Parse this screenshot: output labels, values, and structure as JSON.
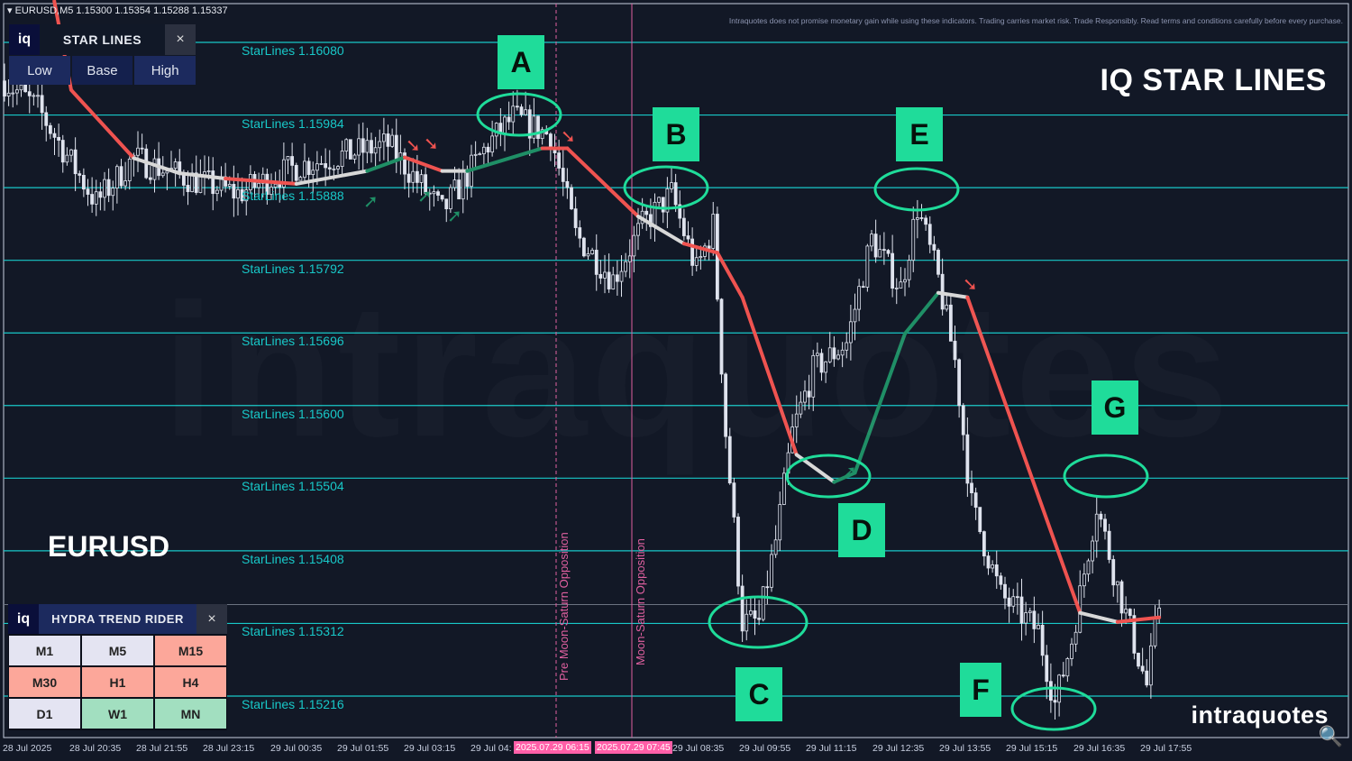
{
  "header": {
    "symbol_info": "EURUSD,M5  1.15300 1.15354 1.15288 1.15337"
  },
  "disclaimer": "Intraquotes does not promise monetary gain while using these indicators. Trading carries market risk. Trade Responsibly. Read terms and conditions carefully before every purchase.",
  "brand_title": "IQ STAR LINES",
  "symbol_label": "EURUSD",
  "logo": "intraquotes",
  "watermark": "intraquotes",
  "star_lines_panel": {
    "logo": "iq",
    "title": "STAR LINES",
    "close": "×",
    "buttons": [
      "Low",
      "Base",
      "High"
    ],
    "selected": "Base"
  },
  "hydra_panel": {
    "logo": "iq",
    "title": "HYDRA TREND RIDER",
    "close": "×",
    "cells": [
      {
        "tf": "M1",
        "state": "neutral"
      },
      {
        "tf": "M5",
        "state": "neutral"
      },
      {
        "tf": "M15",
        "state": "bearish"
      },
      {
        "tf": "M30",
        "state": "bearish"
      },
      {
        "tf": "H1",
        "state": "bearish"
      },
      {
        "tf": "H4",
        "state": "bearish"
      },
      {
        "tf": "D1",
        "state": "neutral"
      },
      {
        "tf": "W1",
        "state": "bullish"
      },
      {
        "tf": "MN",
        "state": "bullish"
      }
    ]
  },
  "colors": {
    "neutral": "#e4e4f2",
    "bearish": "#fca79a",
    "bullish": "#a2dfc0",
    "level_line": "#18c8c8",
    "trend_red": "#ef5350",
    "trend_green": "#1f8f66",
    "trend_white": "#d8d8d8",
    "annotation": "#1fdc9a",
    "event_line": "#e060a0"
  },
  "annotations": [
    "A",
    "B",
    "C",
    "D",
    "E",
    "F",
    "G"
  ],
  "events": [
    {
      "label": "Pre Moon-Saturn Opposition",
      "time_label": "2025.07.29 06:15",
      "style": "dashed"
    },
    {
      "label": "Moon-Saturn Opposition",
      "time_label": "2025.07.29 07:45",
      "style": "solid"
    }
  ],
  "chart_data": {
    "type": "candlestick",
    "symbol": "EURUSD",
    "timeframe": "M5",
    "ohlc_last": {
      "open": 1.153,
      "high": 1.15354,
      "low": 1.15288,
      "close": 1.15337
    },
    "ylim": [
      1.1518,
      1.1613
    ],
    "grid": false,
    "x_tick_labels": [
      "28 Jul 2025",
      "28 Jul 20:35",
      "28 Jul 21:55",
      "28 Jul 23:15",
      "29 Jul 00:35",
      "29 Jul 01:55",
      "29 Jul 03:15",
      "29 Jul 04:",
      "29 Jul 08:35",
      "29 Jul 09:55",
      "29 Jul 11:15",
      "29 Jul 12:35",
      "29 Jul 13:55",
      "29 Jul 15:15",
      "29 Jul 16:35",
      "29 Jul 17:55"
    ],
    "star_lines": [
      {
        "label": "StarLines 1.16080",
        "price": 1.1608
      },
      {
        "label": "StarLines 1.15984",
        "price": 1.15984
      },
      {
        "label": "StarLines 1.15888",
        "price": 1.15888
      },
      {
        "label": "StarLines 1.15792",
        "price": 1.15792
      },
      {
        "label": "StarLines 1.15696",
        "price": 1.15696
      },
      {
        "label": "StarLines 1.15600",
        "price": 1.156
      },
      {
        "label": "StarLines 1.15504",
        "price": 1.15504
      },
      {
        "label": "StarLines 1.15408",
        "price": 1.15408
      },
      {
        "label": "StarLines 1.15312",
        "price": 1.15312
      },
      {
        "label": "StarLines 1.15216",
        "price": 1.15216
      }
    ],
    "current_price": 1.15337,
    "price_path": [
      [
        "2025-07-28 19:15",
        1.16029
      ],
      [
        "2025-07-28 19:55",
        1.15993
      ],
      [
        "2025-07-28 21:05",
        1.15868
      ],
      [
        "2025-07-28 21:50",
        1.15927
      ],
      [
        "2025-07-28 22:45",
        1.15904
      ],
      [
        "2025-07-28 23:55",
        1.1588
      ],
      [
        "2025-07-29 01:05",
        1.15916
      ],
      [
        "2025-07-29 02:55",
        1.15945
      ],
      [
        "2025-07-29 04:00",
        1.15856
      ],
      [
        "2025-07-29 04:55",
        1.15945
      ],
      [
        "2025-07-29 05:25",
        1.15981
      ],
      [
        "2025-07-29 06:10",
        1.15957
      ],
      [
        "2025-07-29 06:40",
        1.15826
      ],
      [
        "2025-07-29 07:25",
        1.15767
      ],
      [
        "2025-07-29 08:00",
        1.15838
      ],
      [
        "2025-07-29 08:35",
        1.1588
      ],
      [
        "2025-07-29 09:05",
        1.15778
      ],
      [
        "2025-07-29 09:25",
        1.15838
      ],
      [
        "2025-07-29 09:40",
        1.15564
      ],
      [
        "2025-07-29 10:00",
        1.15314
      ],
      [
        "2025-07-29 10:20",
        1.15314
      ],
      [
        "2025-07-29 10:40",
        1.15421
      ],
      [
        "2025-07-29 11:00",
        1.15564
      ],
      [
        "2025-07-29 11:25",
        1.15647
      ],
      [
        "2025-07-29 12:05",
        1.15683
      ],
      [
        "2025-07-29 12:35",
        1.1582
      ],
      [
        "2025-07-29 13:10",
        1.15755
      ],
      [
        "2025-07-29 13:30",
        1.15862
      ],
      [
        "2025-07-29 13:55",
        1.15767
      ],
      [
        "2025-07-29 14:15",
        1.15659
      ],
      [
        "2025-07-29 14:35",
        1.15469
      ],
      [
        "2025-07-29 15:10",
        1.15349
      ],
      [
        "2025-07-29 15:55",
        1.15302
      ],
      [
        "2025-07-29 16:15",
        1.15206
      ],
      [
        "2025-07-29 16:35",
        1.1529
      ],
      [
        "2025-07-29 17:05",
        1.15469
      ],
      [
        "2025-07-29 17:30",
        1.15361
      ],
      [
        "2025-07-29 18:05",
        1.1523
      ],
      [
        "2025-07-29 18:20",
        1.15337
      ]
    ],
    "trend_line": [
      [
        "2025-07-28 20:35",
        1.16017,
        "red"
      ],
      [
        "2025-07-28 21:50",
        1.15927,
        "red"
      ],
      [
        "2025-07-28 22:45",
        1.15907,
        "white"
      ],
      [
        "2025-07-28 23:40",
        1.159,
        "white"
      ],
      [
        "2025-07-29 01:05",
        1.15893,
        "red"
      ],
      [
        "2025-07-29 02:30",
        1.1591,
        "white"
      ],
      [
        "2025-07-29 03:15",
        1.15928,
        "green"
      ],
      [
        "2025-07-29 04:00",
        1.1591,
        "red"
      ],
      [
        "2025-07-29 04:30",
        1.1591,
        "white"
      ],
      [
        "2025-07-29 06:00",
        1.1594,
        "green"
      ],
      [
        "2025-07-29 06:30",
        1.1594,
        "red"
      ],
      [
        "2025-07-29 07:55",
        1.1585,
        "red"
      ],
      [
        "2025-07-29 08:50",
        1.15814,
        "white"
      ],
      [
        "2025-07-29 09:30",
        1.15802,
        "red"
      ],
      [
        "2025-07-29 10:00",
        1.15743,
        "red"
      ],
      [
        "2025-07-29 11:05",
        1.15535,
        "red"
      ],
      [
        "2025-07-29 11:50",
        1.15499,
        "white"
      ],
      [
        "2025-07-29 12:15",
        1.15511,
        "green"
      ],
      [
        "2025-07-29 13:15",
        1.15695,
        "green"
      ],
      [
        "2025-07-29 13:55",
        1.15749,
        "green"
      ],
      [
        "2025-07-29 14:30",
        1.15743,
        "white"
      ],
      [
        "2025-07-29 16:45",
        1.15326,
        "red"
      ],
      [
        "2025-07-29 17:30",
        1.15314,
        "white"
      ],
      [
        "2025-07-29 18:20",
        1.1532,
        "red"
      ]
    ]
  }
}
